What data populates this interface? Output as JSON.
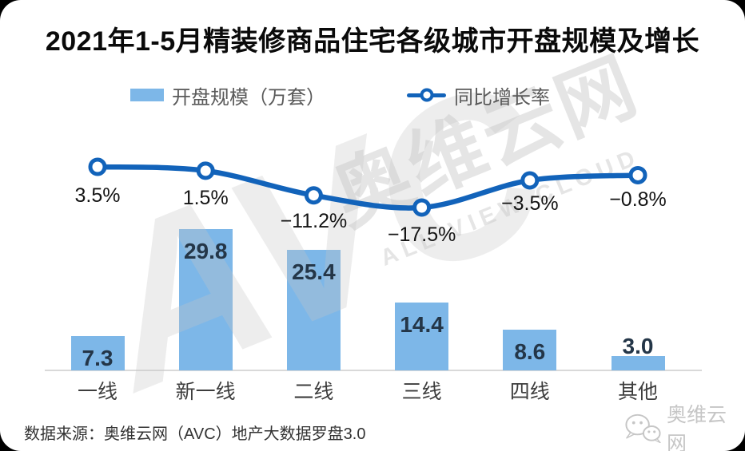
{
  "title": "2021年1-5月精装修商品住宅各级城市开盘规模及增长",
  "legend": {
    "bar_label": "开盘规模（万套）",
    "line_label": "同比增长率"
  },
  "chart_data": {
    "type": "bar",
    "subtype": "bar+line combo",
    "title": "2021年1-5月精装修商品住宅各级城市开盘规模及增长",
    "categories": [
      "一线",
      "新一线",
      "二线",
      "三线",
      "四线",
      "其他"
    ],
    "series": [
      {
        "name": "开盘规模（万套）",
        "type": "bar",
        "values": [
          7.3,
          29.8,
          25.4,
          14.4,
          8.6,
          3.0
        ],
        "labels": [
          "7.3",
          "29.8",
          "25.4",
          "14.4",
          "8.6",
          "3.0"
        ],
        "color": "#7DB7E8"
      },
      {
        "name": "同比增长率",
        "type": "line",
        "values": [
          3.5,
          1.5,
          -11.2,
          -17.5,
          -3.5,
          -0.8
        ],
        "labels": [
          "3.5%",
          "1.5%",
          "−11.2%",
          "−17.5%",
          "−3.5%",
          "−0.8%"
        ],
        "color": "#1263BA",
        "marker": "open-circle"
      }
    ],
    "xlabel": "",
    "ylabel": "",
    "axes_visible": false,
    "grid": false,
    "legend_position": "top"
  },
  "watermark": {
    "avc": "AVC",
    "cn": "奥维云网",
    "en": "ALL VIEW CLOUD"
  },
  "footer": {
    "source": "数据来源：奥维云网（AVC）地产大数据罗盘3.0",
    "brand": "奥维云网"
  },
  "colors": {
    "bar": "#7DB7E8",
    "line": "#1263BA",
    "background": "#FFFFFF",
    "frame": "#000000",
    "axis": "#D9D9D9"
  }
}
